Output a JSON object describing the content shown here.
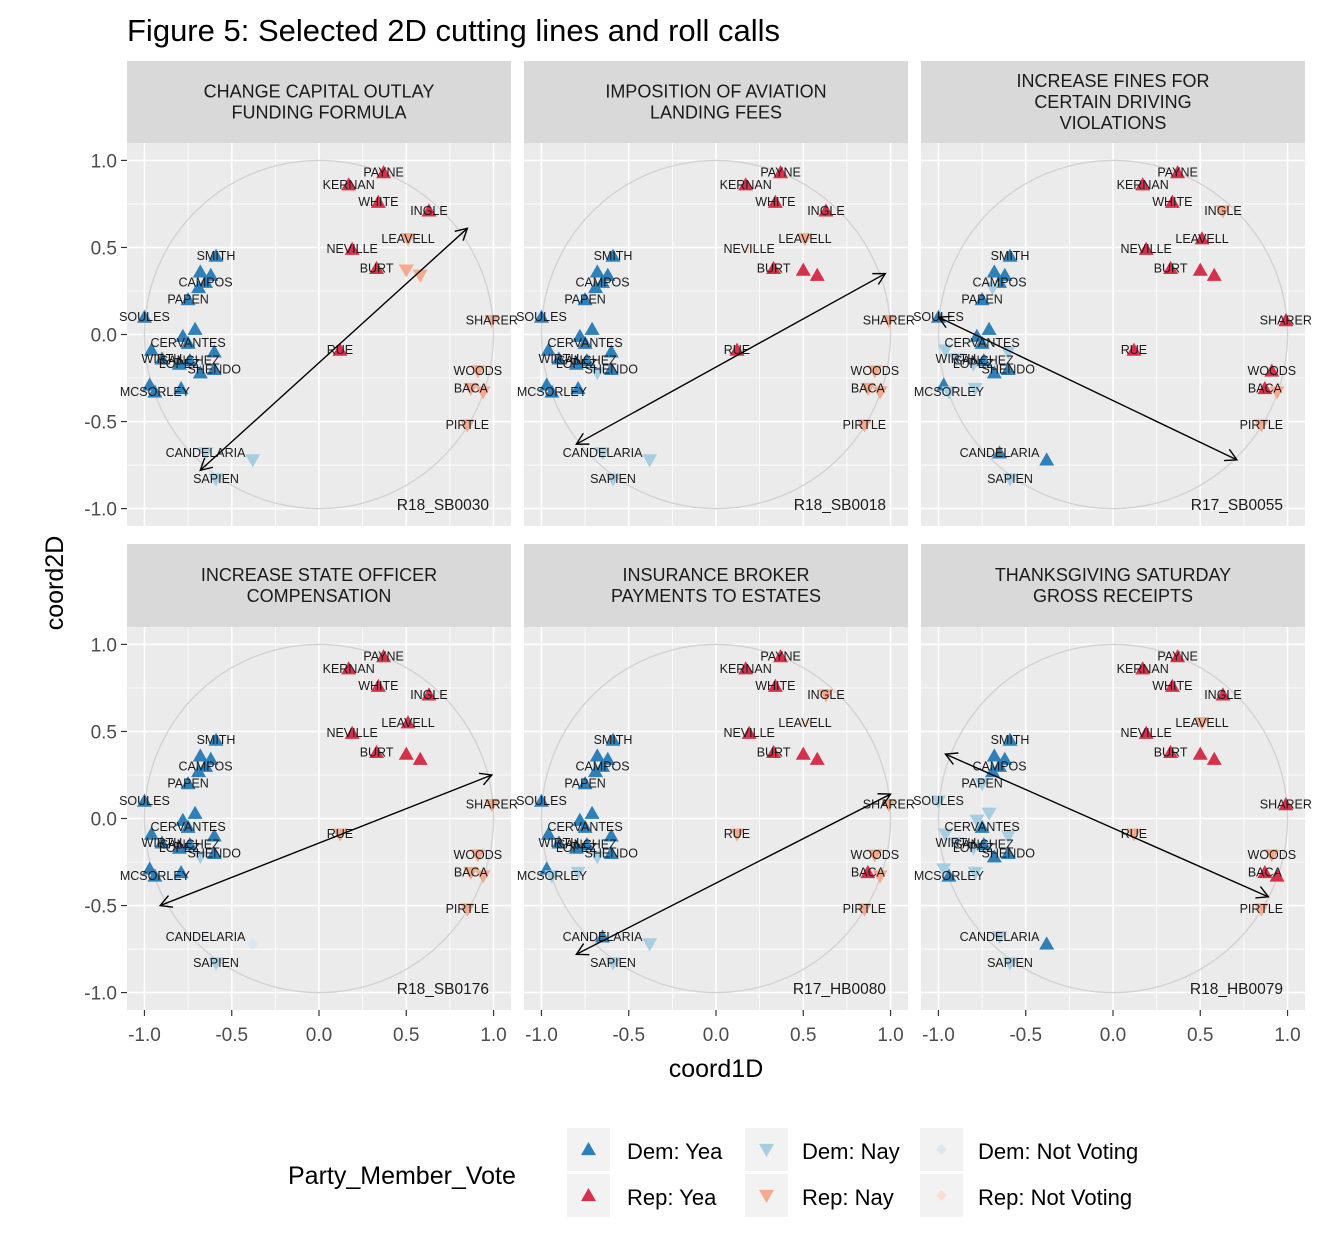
{
  "figure": {
    "title": "Figure 5: Selected 2D cutting lines and roll calls",
    "xlabel": "coord1D",
    "ylabel": "coord2D",
    "xlim": [
      -1.1,
      1.1
    ],
    "ylim": [
      -1.1,
      1.1
    ],
    "x_ticks": [
      -1.0,
      -0.5,
      0.0,
      0.5,
      1.0
    ],
    "y_ticks": [
      -1.0,
      -0.5,
      0.0,
      0.5,
      1.0
    ],
    "x_tick_labels": [
      "-1.0",
      "-0.5",
      "0.0",
      "0.5",
      "1.0"
    ],
    "y_tick_labels": [
      "-1.0",
      "-0.5",
      "0.0",
      "0.5",
      "1.0"
    ],
    "grid": true,
    "unit_circle": true
  },
  "legend": {
    "title": "Party_Member_Vote",
    "position": "bottom",
    "items": [
      {
        "key": "dem_yea",
        "label": "Dem: Yea"
      },
      {
        "key": "dem_nay",
        "label": "Dem: Nay"
      },
      {
        "key": "dem_nv",
        "label": "Dem: Not Voting"
      },
      {
        "key": "rep_yea",
        "label": "Rep: Yea"
      },
      {
        "key": "rep_nay",
        "label": "Rep: Nay"
      },
      {
        "key": "rep_nv",
        "label": "Rep: Not Voting"
      }
    ]
  },
  "colors": {
    "dem_yea": "#2f7fb9",
    "dem_nay": "#a6cee3",
    "dem_nv": "#d9e7f1",
    "rep_yea": "#d5314a",
    "rep_nay": "#f5aa8c",
    "rep_nv": "#f8ddd0",
    "panel_bg": "#ebebeb",
    "strip_bg": "#d9d9d9",
    "grid": "#ffffff",
    "circle": "#d2d2d2",
    "text": "#1a1a1a",
    "axis_text": "#4d4d4d"
  },
  "chart_data": {
    "type": "scatter",
    "legislators": [
      {
        "name": "PAYNE",
        "party": "Rep",
        "x": 0.37,
        "y": 0.93
      },
      {
        "name": "KERNAN",
        "party": "Rep",
        "x": 0.17,
        "y": 0.86
      },
      {
        "name": "WHITE",
        "party": "Rep",
        "x": 0.34,
        "y": 0.76
      },
      {
        "name": "INGLE",
        "party": "Rep",
        "x": 0.63,
        "y": 0.71
      },
      {
        "name": "LEAVELL",
        "party": "Rep",
        "x": 0.51,
        "y": 0.55
      },
      {
        "name": "NEVILLE",
        "party": "Rep",
        "x": 0.19,
        "y": 0.49
      },
      {
        "name": "BURT",
        "party": "Rep",
        "x": 0.33,
        "y": 0.38
      },
      {
        "name": "",
        "party": "Rep",
        "x": 0.5,
        "y": 0.37
      },
      {
        "name": "",
        "party": "Rep",
        "x": 0.58,
        "y": 0.34
      },
      {
        "name": "SHARER",
        "party": "Rep",
        "x": 0.99,
        "y": 0.08
      },
      {
        "name": "RUE",
        "party": "Rep",
        "x": 0.12,
        "y": -0.09
      },
      {
        "name": "WOODS",
        "party": "Rep",
        "x": 0.91,
        "y": -0.21
      },
      {
        "name": "BACA",
        "party": "Rep",
        "x": 0.87,
        "y": -0.31
      },
      {
        "name": "",
        "party": "Rep",
        "x": 0.94,
        "y": -0.33
      },
      {
        "name": "PIRTLE",
        "party": "Rep",
        "x": 0.85,
        "y": -0.52
      },
      {
        "name": "SMITH",
        "party": "Dem",
        "x": -0.59,
        "y": 0.45
      },
      {
        "name": "",
        "party": "Dem",
        "x": -0.68,
        "y": 0.36
      },
      {
        "name": "",
        "party": "Dem",
        "x": -0.62,
        "y": 0.34
      },
      {
        "name": "CAMPOS",
        "party": "Dem",
        "x": -0.65,
        "y": 0.3
      },
      {
        "name": "",
        "party": "Dem",
        "x": -0.69,
        "y": 0.27
      },
      {
        "name": "PAPEN",
        "party": "Dem",
        "x": -0.75,
        "y": 0.2
      },
      {
        "name": "SOULES",
        "party": "Dem",
        "x": -1.0,
        "y": 0.1
      },
      {
        "name": "",
        "party": "Dem",
        "x": -0.71,
        "y": 0.03
      },
      {
        "name": "",
        "party": "Dem",
        "x": -0.78,
        "y": -0.01
      },
      {
        "name": "CERVANTES",
        "party": "Dem",
        "x": -0.75,
        "y": -0.05
      },
      {
        "name": "",
        "party": "Dem",
        "x": -0.6,
        "y": -0.1
      },
      {
        "name": "",
        "party": "Dem",
        "x": -0.96,
        "y": -0.09
      },
      {
        "name": "WIRTH",
        "party": "Dem",
        "x": -0.9,
        "y": -0.14
      },
      {
        "name": "SANCHEZ",
        "party": "Dem",
        "x": -0.74,
        "y": -0.15
      },
      {
        "name": "LOPEZ",
        "party": "Dem",
        "x": -0.8,
        "y": -0.17
      },
      {
        "name": "SHENDO",
        "party": "Dem",
        "x": -0.6,
        "y": -0.2
      },
      {
        "name": "",
        "party": "Dem",
        "x": -0.68,
        "y": -0.22
      },
      {
        "name": "",
        "party": "Dem",
        "x": -0.97,
        "y": -0.29
      },
      {
        "name": "MCSORLEY",
        "party": "Dem",
        "x": -0.94,
        "y": -0.33
      },
      {
        "name": "",
        "party": "Dem",
        "x": -0.79,
        "y": -0.31
      },
      {
        "name": "CANDELARIA",
        "party": "Dem",
        "x": -0.65,
        "y": -0.68
      },
      {
        "name": "",
        "party": "Dem",
        "x": -0.38,
        "y": -0.72
      },
      {
        "name": "SAPIEN",
        "party": "Dem",
        "x": -0.59,
        "y": -0.83
      }
    ],
    "panels": [
      {
        "title_lines": [
          "CHANGE CAPITAL OUTLAY",
          "FUNDING FORMULA"
        ],
        "rollcall": "R18_SB0030",
        "arrow": [
          0.85,
          0.61,
          -0.68,
          -0.78
        ],
        "votes": [
          "rep_yea",
          "rep_yea",
          "rep_yea",
          "rep_yea",
          "rep_nay",
          "rep_yea",
          "rep_yea",
          "rep_nay",
          "rep_nay",
          "rep_nay",
          "rep_yea",
          "rep_nay",
          "rep_nay",
          "rep_nay",
          "rep_nay",
          "dem_yea",
          "dem_yea",
          "dem_yea",
          "dem_yea",
          "dem_yea",
          "dem_yea",
          "dem_yea",
          "dem_yea",
          "dem_yea",
          "dem_yea",
          "dem_yea",
          "dem_yea",
          "dem_yea",
          "dem_yea",
          "dem_yea",
          "dem_yea",
          "dem_yea",
          "dem_yea",
          "dem_yea",
          "dem_yea",
          "dem_nay",
          "dem_nay",
          "dem_nay"
        ]
      },
      {
        "title_lines": [
          "IMPOSITION OF AVIATION",
          "LANDING FEES"
        ],
        "rollcall": "R18_SB0018",
        "arrow": [
          0.97,
          0.35,
          -0.8,
          -0.63
        ],
        "votes": [
          "rep_yea",
          "rep_yea",
          "rep_yea",
          "rep_yea",
          "rep_nay",
          "rep_nv",
          "rep_yea",
          "rep_yea",
          "rep_yea",
          "rep_nay",
          "rep_yea",
          "rep_nay",
          "rep_nay",
          "rep_nay",
          "rep_nay",
          "dem_yea",
          "dem_yea",
          "dem_yea",
          "dem_yea",
          "dem_yea",
          "dem_yea",
          "dem_yea",
          "dem_yea",
          "dem_yea",
          "dem_yea",
          "dem_yea",
          "dem_yea",
          "dem_yea",
          "dem_yea",
          "dem_yea",
          "dem_yea",
          "dem_nay",
          "dem_yea",
          "dem_yea",
          "dem_yea",
          "dem_nay",
          "dem_nay",
          "dem_nay"
        ]
      },
      {
        "title_lines": [
          "INCREASE FINES FOR",
          "CERTAIN DRIVING",
          "VIOLATIONS"
        ],
        "rollcall": "R17_SB0055",
        "arrow": [
          0.71,
          -0.72,
          -1.0,
          0.1
        ],
        "votes": [
          "rep_yea",
          "rep_yea",
          "rep_yea",
          "rep_nay",
          "rep_yea",
          "rep_yea",
          "rep_yea",
          "rep_yea",
          "rep_yea",
          "rep_yea",
          "rep_yea",
          "rep_yea",
          "rep_yea",
          "rep_nay",
          "rep_nay",
          "dem_yea",
          "dem_yea",
          "dem_yea",
          "dem_yea",
          "dem_nay",
          "dem_yea",
          "dem_yea",
          "dem_yea",
          "dem_yea",
          "dem_yea",
          "dem_nay",
          "dem_nay",
          "dem_nay",
          "dem_yea",
          "dem_nay",
          "dem_yea",
          "dem_yea",
          "dem_yea",
          "dem_nay",
          "dem_nay",
          "dem_yea",
          "dem_yea",
          "dem_nay"
        ]
      },
      {
        "title_lines": [
          "INCREASE STATE OFFICER",
          "COMPENSATION"
        ],
        "rollcall": "R18_SB0176",
        "arrow": [
          0.99,
          0.25,
          -0.91,
          -0.5
        ],
        "votes": [
          "rep_yea",
          "rep_yea",
          "rep_yea",
          "rep_yea",
          "rep_yea",
          "rep_yea",
          "rep_yea",
          "rep_yea",
          "rep_yea",
          "rep_nay",
          "rep_nay",
          "rep_nay",
          "rep_nay",
          "rep_nay",
          "rep_nay",
          "dem_yea",
          "dem_yea",
          "dem_yea",
          "dem_yea",
          "dem_yea",
          "dem_yea",
          "dem_yea",
          "dem_yea",
          "dem_yea",
          "dem_yea",
          "dem_yea",
          "dem_yea",
          "dem_yea",
          "dem_yea",
          "dem_yea",
          "dem_yea",
          "dem_nay",
          "dem_yea",
          "dem_yea",
          "dem_yea",
          "dem_nv",
          "dem_nv",
          "dem_nay"
        ]
      },
      {
        "title_lines": [
          "INSURANCE BROKER",
          "PAYMENTS TO ESTATES"
        ],
        "rollcall": "R17_HB0080",
        "arrow": [
          1.0,
          0.14,
          -0.8,
          -0.78
        ],
        "votes": [
          "rep_yea",
          "rep_yea",
          "rep_yea",
          "rep_nay",
          "rep_nv",
          "rep_yea",
          "rep_yea",
          "rep_yea",
          "rep_yea",
          "rep_nay",
          "rep_nay",
          "rep_nay",
          "rep_yea",
          "rep_nay",
          "rep_nay",
          "dem_yea",
          "dem_yea",
          "dem_yea",
          "dem_yea",
          "dem_yea",
          "dem_yea",
          "dem_yea",
          "dem_yea",
          "dem_yea",
          "dem_yea",
          "dem_yea",
          "dem_yea",
          "dem_yea",
          "dem_yea",
          "dem_yea",
          "dem_yea",
          "dem_nay",
          "dem_yea",
          "dem_nay",
          "dem_nay",
          "dem_yea",
          "dem_nay",
          "dem_nay"
        ]
      },
      {
        "title_lines": [
          "THANKSGIVING SATURDAY",
          "GROSS RECEIPTS"
        ],
        "rollcall": "R18_HB0079",
        "arrow": [
          0.89,
          -0.45,
          -0.96,
          0.37
        ],
        "votes": [
          "rep_yea",
          "rep_yea",
          "rep_yea",
          "rep_yea",
          "rep_nay",
          "rep_yea",
          "rep_yea",
          "rep_yea",
          "rep_yea",
          "rep_yea",
          "rep_nay",
          "rep_nay",
          "rep_yea",
          "rep_yea",
          "rep_nay",
          "dem_yea",
          "dem_yea",
          "dem_yea",
          "dem_yea",
          "dem_yea",
          "dem_nay",
          "dem_nay",
          "dem_nay",
          "dem_nay",
          "dem_yea",
          "dem_nay",
          "dem_nay",
          "dem_nay",
          "dem_yea",
          "dem_nay",
          "dem_yea",
          "dem_yea",
          "dem_nay",
          "dem_yea",
          "dem_nay",
          "dem_nay",
          "dem_yea",
          "dem_nay"
        ]
      }
    ]
  }
}
